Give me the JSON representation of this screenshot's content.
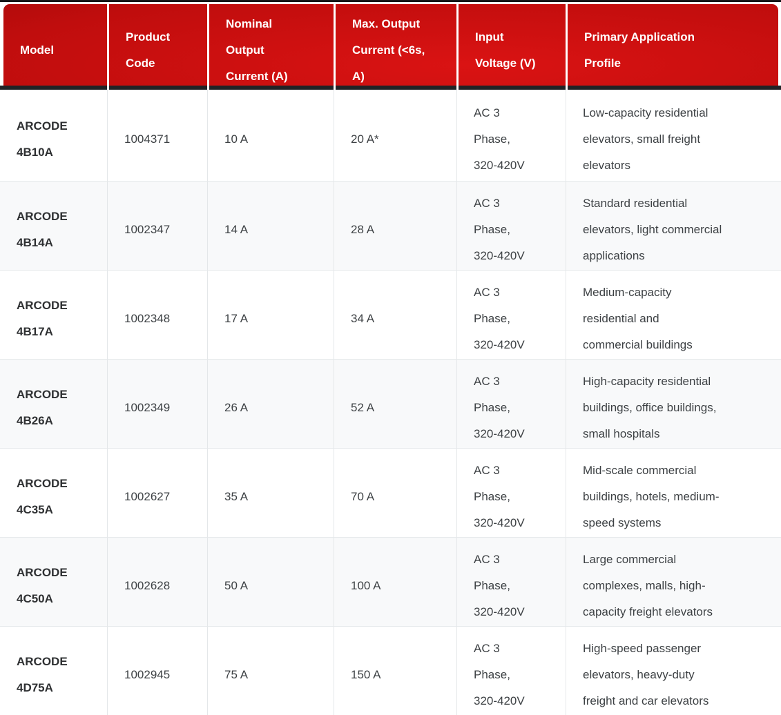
{
  "theme": {
    "header_gradient_bright": "#da1313",
    "header_gradient_mid": "#c00d0d",
    "header_gradient_dark": "#8c0808",
    "header_text_color": "#ffffff",
    "top_line_color": "#17181a",
    "header_divider_color": "#212326",
    "body_text_color": "#3d4144",
    "model_text_color": "#2e3032",
    "row_alt_background": "#f8f9fa",
    "grid_line_color": "#e4e7e9"
  },
  "table": {
    "columns": [
      {
        "key": "model",
        "label": "Model"
      },
      {
        "key": "product_code",
        "label": "Product\nCode"
      },
      {
        "key": "nominal_current",
        "label": "Nominal\nOutput\nCurrent (A)"
      },
      {
        "key": "max_current",
        "label": "Max. Output\nCurrent (<6s,\nA)"
      },
      {
        "key": "input_voltage",
        "label": "Input\nVoltage (V)"
      },
      {
        "key": "application",
        "label": "Primary Application\nProfile"
      }
    ],
    "rows": [
      {
        "model": "ARCODE\n4B10A",
        "product_code": "1004371",
        "nominal_current": "10 A",
        "max_current": "20 A*",
        "input_voltage": "AC 3\nPhase,\n320-420V",
        "application": "Low-capacity residential\nelevators, small freight\nelevators"
      },
      {
        "model": "ARCODE\n4B14A",
        "product_code": "1002347",
        "nominal_current": "14 A",
        "max_current": "28 A",
        "input_voltage": "AC 3\nPhase,\n320-420V",
        "application": "Standard residential\nelevators, light commercial\napplications"
      },
      {
        "model": "ARCODE\n4B17A",
        "product_code": "1002348",
        "nominal_current": "17 A",
        "max_current": "34 A",
        "input_voltage": "AC 3\nPhase,\n320-420V",
        "application": "Medium-capacity\nresidential and\ncommercial buildings"
      },
      {
        "model": "ARCODE\n4B26A",
        "product_code": "1002349",
        "nominal_current": "26 A",
        "max_current": "52 A",
        "input_voltage": "AC 3\nPhase,\n320-420V",
        "application": "High-capacity residential\nbuildings, office buildings,\nsmall hospitals"
      },
      {
        "model": "ARCODE\n4C35A",
        "product_code": "1002627",
        "nominal_current": "35 A",
        "max_current": "70 A",
        "input_voltage": "AC 3\nPhase,\n320-420V",
        "application": "Mid-scale commercial\nbuildings, hotels, medium-\nspeed systems"
      },
      {
        "model": "ARCODE\n4C50A",
        "product_code": "1002628",
        "nominal_current": "50 A",
        "max_current": "100 A",
        "input_voltage": "AC 3\nPhase,\n320-420V",
        "application": "Large commercial\ncomplexes, malls, high-\ncapacity freight elevators"
      },
      {
        "model": "ARCODE\n4D75A",
        "product_code": "1002945",
        "nominal_current": "75 A",
        "max_current": "150 A",
        "input_voltage": "AC 3\nPhase,\n320-420V",
        "application": "High-speed passenger\nelevators, heavy-duty\nfreight and car elevators"
      }
    ]
  }
}
